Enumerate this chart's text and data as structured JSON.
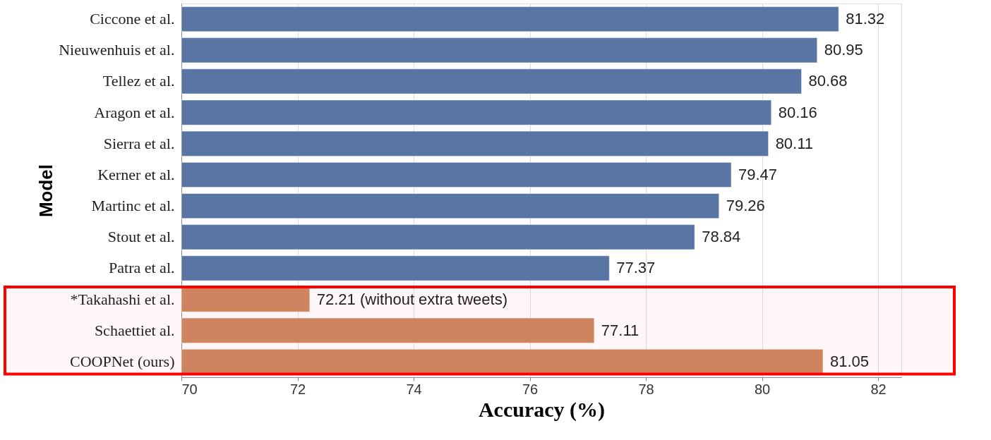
{
  "chart_data": {
    "type": "bar",
    "orientation": "horizontal",
    "xlabel": "Accuracy (%)",
    "ylabel": "Model",
    "categories": [
      "Ciccone et al.",
      "Nieuwenhuis et al.",
      "Tellez et al.",
      "Aragon et al.",
      "Sierra et al.",
      "Kerner et al.",
      "Martinc et al.",
      "Stout et al.",
      "Patra et al.",
      "*Takahashi et al.",
      "Schaettiet al.",
      "COOPNet (ours)"
    ],
    "values": [
      81.32,
      80.95,
      80.68,
      80.16,
      80.11,
      79.47,
      79.26,
      78.84,
      77.37,
      72.21,
      77.11,
      81.05
    ],
    "colors": [
      "#5975a4",
      "#5975a4",
      "#5975a4",
      "#5975a4",
      "#5975a4",
      "#5975a4",
      "#5975a4",
      "#5975a4",
      "#5975a4",
      "#cc8963",
      "#cc8963",
      "#cc8963"
    ],
    "value_labels": [
      "81.32",
      "80.95",
      "80.68",
      "80.16",
      "80.11",
      "79.47",
      "79.26",
      "78.84",
      "77.37",
      "72.21 (without extra tweets)",
      "77.11",
      "81.05"
    ],
    "xlim": [
      70,
      82.4
    ],
    "xticks": [
      70,
      72,
      74,
      76,
      78,
      80,
      82
    ],
    "grid": "x",
    "bands": [
      {
        "axis": "y",
        "from": "*Takahashi et al.",
        "to": "COOPNet (ours)",
        "color": "#ff0000"
      }
    ]
  }
}
